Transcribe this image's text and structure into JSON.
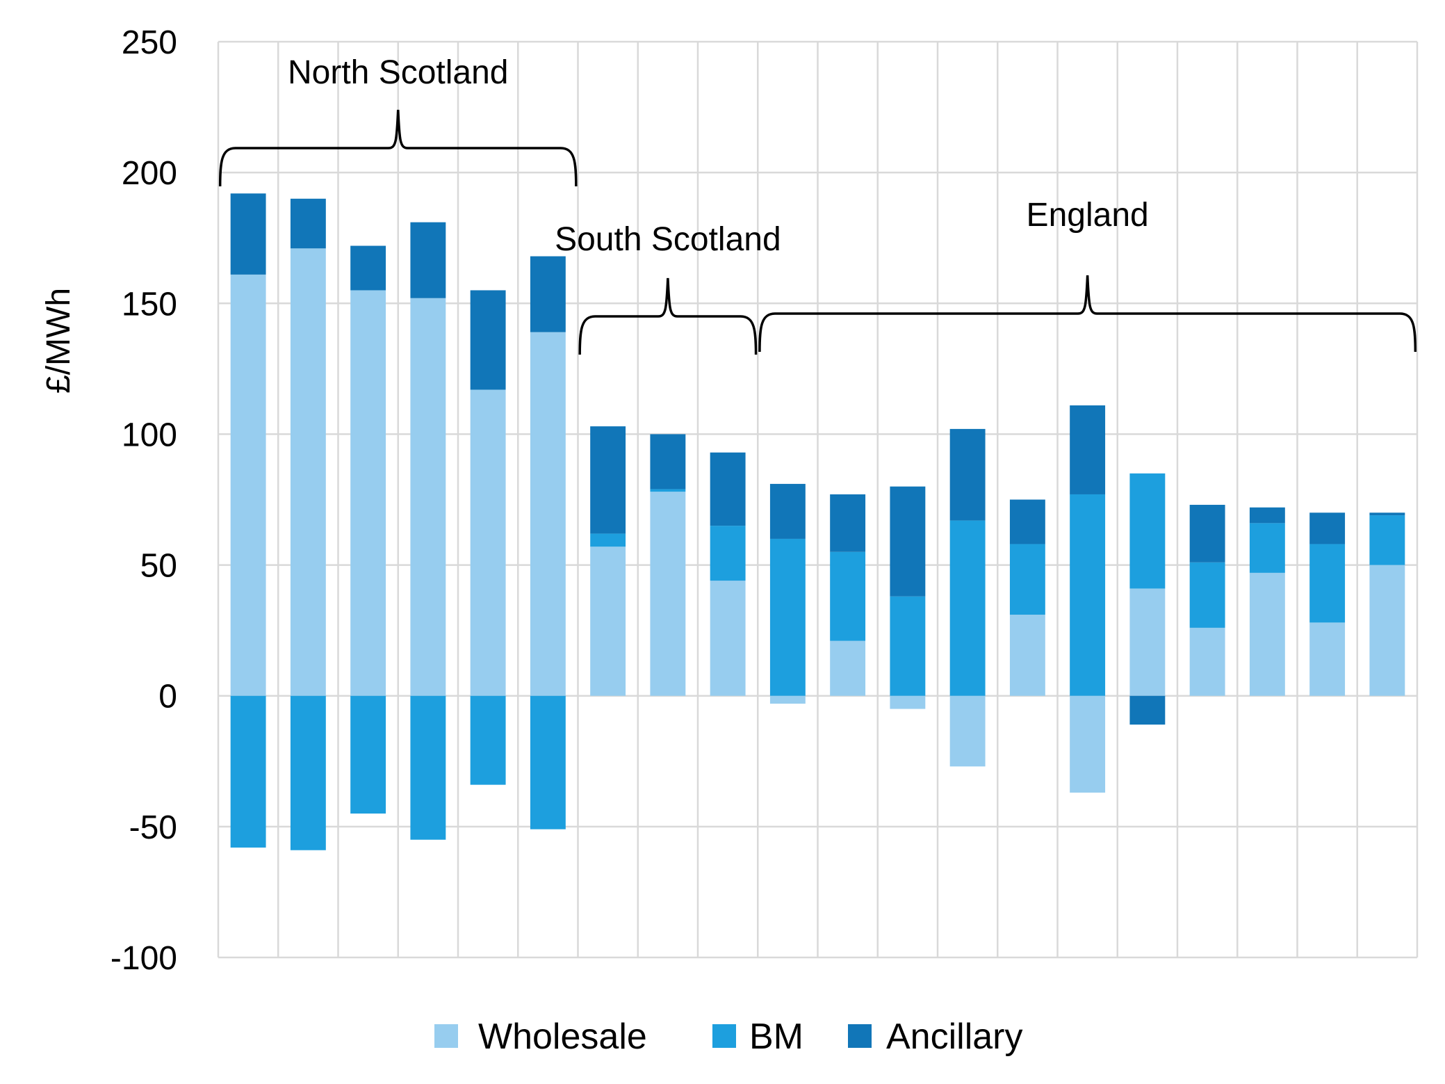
{
  "chart_data": {
    "type": "bar",
    "stacked": true,
    "ylabel": "£/MWh",
    "xlabel": "",
    "ylim": [
      -100,
      250
    ],
    "yticks": [
      -100,
      -50,
      0,
      50,
      100,
      150,
      200,
      250
    ],
    "ytick_labels": [
      "-100",
      "-50",
      "0",
      "50",
      "100",
      "150",
      "200",
      "250"
    ],
    "grid": true,
    "legend_position": "bottom",
    "n_categories": 20,
    "series": [
      {
        "name": "Wholesale",
        "color": "#97cdef",
        "values": [
          161,
          171,
          155,
          152,
          117,
          139,
          57,
          78,
          44,
          -3,
          21,
          -5,
          -27,
          31,
          -37,
          41,
          26,
          47,
          28,
          50
        ]
      },
      {
        "name": "BM",
        "color": "#1d9fde",
        "values": [
          -58,
          -59,
          -45,
          -55,
          -34,
          -51,
          5,
          1,
          21,
          60,
          34,
          38,
          67,
          27,
          77,
          44,
          25,
          19,
          30,
          19
        ]
      },
      {
        "name": "Ancillary",
        "color": "#1176b8",
        "values": [
          31,
          19,
          17,
          29,
          38,
          29,
          41,
          21,
          28,
          21,
          22,
          42,
          35,
          17,
          34,
          -11,
          22,
          6,
          12,
          1
        ]
      }
    ],
    "groups": [
      {
        "label": "North Scotland",
        "start": 0,
        "end": 5
      },
      {
        "label": "South Scotland",
        "start": 6,
        "end": 8
      },
      {
        "label": "England",
        "start": 9,
        "end": 19
      }
    ]
  }
}
